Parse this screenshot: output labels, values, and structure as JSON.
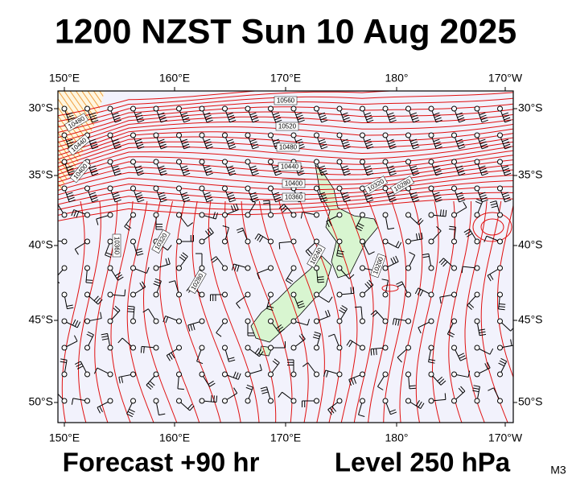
{
  "title": "1200 NZST Sun 10 Aug 2025",
  "footer": {
    "forecast": "Forecast +90 hr",
    "level": "Level 250 hPa",
    "code": "M3"
  },
  "axes": {
    "lon_labels": [
      "150°E",
      "160°E",
      "170°E",
      "180°",
      "170°W"
    ],
    "lat_labels": [
      "30°S",
      "35°S",
      "40°S",
      "45°S",
      "50°S"
    ]
  },
  "contour_labels": [
    "10560",
    "10520",
    "10480",
    "10440",
    "10400",
    "10360",
    "10320",
    "10280",
    "10480",
    "10440",
    "10400",
    "10360",
    "10320",
    "10280",
    "10240",
    "10200"
  ]
}
